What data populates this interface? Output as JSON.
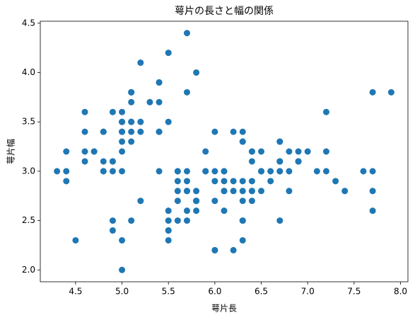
{
  "chart_data": {
    "type": "scatter",
    "title": "萼片の長さと幅の関係",
    "x_label": "萼片長",
    "y_label": "萼片幅",
    "color": "#1f77b4",
    "xlim": [
      4.12,
      8.08
    ],
    "ylim": [
      1.88,
      4.52
    ],
    "xticks": [
      4.5,
      {
        "value": 5,
        "label": "5.0"
      },
      5.5,
      {
        "value": 6,
        "label": "6.0"
      },
      6.5,
      {
        "value": 7,
        "label": "7.0"
      },
      7.5,
      {
        "value": 8,
        "label": "8.0"
      }
    ],
    "yticks": [
      {
        "value": 2,
        "label": "2.0"
      },
      2.5,
      {
        "value": 3,
        "label": "3.0"
      },
      3.5,
      {
        "value": 4,
        "label": "4.0"
      },
      4.5
    ],
    "x": [
      5.1,
      4.9,
      4.7,
      4.6,
      5.0,
      5.4,
      4.6,
      5.0,
      4.4,
      4.9,
      5.4,
      4.8,
      4.8,
      4.3,
      5.8,
      5.7,
      5.4,
      5.1,
      5.7,
      5.1,
      5.4,
      5.1,
      4.6,
      5.1,
      4.8,
      5.0,
      5.0,
      5.2,
      5.2,
      4.7,
      4.8,
      5.4,
      5.2,
      5.5,
      4.9,
      5.0,
      5.5,
      4.9,
      4.4,
      5.1,
      5.0,
      4.5,
      4.4,
      5.0,
      5.1,
      4.8,
      5.1,
      4.6,
      5.3,
      5.0,
      7.0,
      6.4,
      6.9,
      5.5,
      6.5,
      5.7,
      6.3,
      4.9,
      6.6,
      5.2,
      5.0,
      5.9,
      6.0,
      6.1,
      5.6,
      6.7,
      5.6,
      5.8,
      6.2,
      5.6,
      5.9,
      6.1,
      6.3,
      6.1,
      6.4,
      6.6,
      6.8,
      6.7,
      6.0,
      5.7,
      5.5,
      5.5,
      5.8,
      6.0,
      5.4,
      6.0,
      6.7,
      6.3,
      5.6,
      5.5,
      5.5,
      6.1,
      5.8,
      5.0,
      5.6,
      5.7,
      5.7,
      6.2,
      5.1,
      5.7,
      6.3,
      5.8,
      7.1,
      6.3,
      6.5,
      7.6,
      4.9,
      7.3,
      6.7,
      7.2,
      6.5,
      6.4,
      6.8,
      5.7,
      5.8,
      6.4,
      6.5,
      7.7,
      7.7,
      6.0,
      6.9,
      5.6,
      7.7,
      6.3,
      6.7,
      7.2,
      6.2,
      6.1,
      6.4,
      7.2,
      7.4,
      7.9,
      6.4,
      6.3,
      6.1,
      7.7,
      6.3,
      6.4,
      6.0,
      6.9,
      6.7,
      6.9,
      5.8,
      6.8,
      6.7,
      6.7,
      6.3,
      6.5,
      6.2,
      5.9
    ],
    "values": [
      3.5,
      3.0,
      3.2,
      3.1,
      3.6,
      3.9,
      3.4,
      3.4,
      2.9,
      3.1,
      3.7,
      3.4,
      3.0,
      3.0,
      4.0,
      4.4,
      3.9,
      3.5,
      3.8,
      3.8,
      3.4,
      3.7,
      3.6,
      3.3,
      3.4,
      3.0,
      3.4,
      3.5,
      3.4,
      3.2,
      3.1,
      3.4,
      4.1,
      4.2,
      3.1,
      3.2,
      3.5,
      3.6,
      3.0,
      3.4,
      3.5,
      2.3,
      3.2,
      3.5,
      3.8,
      3.0,
      3.8,
      3.2,
      3.7,
      3.3,
      3.2,
      3.2,
      3.1,
      2.3,
      2.8,
      2.8,
      3.3,
      2.4,
      2.9,
      2.7,
      2.0,
      3.0,
      2.2,
      2.9,
      2.9,
      3.1,
      3.0,
      2.7,
      2.2,
      2.5,
      3.2,
      2.8,
      2.5,
      2.8,
      2.9,
      3.0,
      2.8,
      3.0,
      2.9,
      2.6,
      2.4,
      2.4,
      2.7,
      2.7,
      3.0,
      3.4,
      3.1,
      2.3,
      3.0,
      2.5,
      2.6,
      3.0,
      2.6,
      2.3,
      2.7,
      3.0,
      2.9,
      2.9,
      2.5,
      2.8,
      3.3,
      2.7,
      3.0,
      2.9,
      3.0,
      3.0,
      2.5,
      2.9,
      2.5,
      3.6,
      3.2,
      2.7,
      3.0,
      2.5,
      2.8,
      3.2,
      3.0,
      3.8,
      2.6,
      2.2,
      3.2,
      2.8,
      2.8,
      2.7,
      3.3,
      3.2,
      2.8,
      3.0,
      2.8,
      3.0,
      2.8,
      3.8,
      2.8,
      2.8,
      2.6,
      3.0,
      3.4,
      3.1,
      3.0,
      3.1,
      3.1,
      3.1,
      2.7,
      3.2,
      3.3,
      3.0,
      2.5,
      3.0,
      3.4,
      3.0
    ]
  }
}
